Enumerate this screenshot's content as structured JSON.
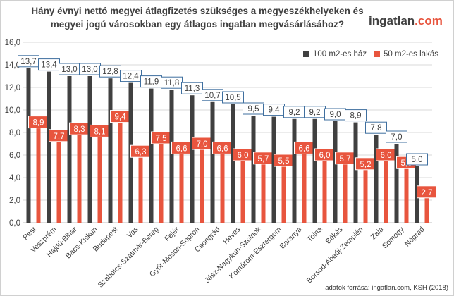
{
  "chart_data": {
    "type": "bar",
    "title": "Hány évnyi nettó megyei  átlagfizetés szükséges a megyeszékhelyeken  és megyei jogú városokban egy átlagos ingatlan megvásárlásához?",
    "categories": [
      "Pest",
      "Veszprém",
      "Hajdú-Bihar",
      "Bács-Kiskun",
      "Budapest",
      "Vas",
      "Szabolcs-Szatmár-Bereg",
      "Fejér",
      "Győr-Moson-Sopron",
      "Csongrád",
      "Heves",
      "Jász-Nagykun-Szolnok",
      "Komárom-Esztergom",
      "Baranya",
      "Tolna",
      "Békés",
      "Borsod-Abaúj-Zemplén",
      "Zala",
      "Somogy",
      "Nógrád"
    ],
    "series": [
      {
        "name": "100 m2-es ház",
        "color": "#404040",
        "values": [
          13.7,
          13.4,
          13.0,
          13.0,
          12.8,
          12.4,
          11.9,
          11.8,
          11.3,
          10.7,
          10.5,
          9.5,
          9.4,
          9.2,
          9.2,
          9.0,
          8.9,
          7.8,
          7.0,
          5.0
        ]
      },
      {
        "name": "50 m2-es lakás",
        "color": "#e8553e",
        "values": [
          8.9,
          7.7,
          8.3,
          8.1,
          9.4,
          6.3,
          7.5,
          6.6,
          7.0,
          6.6,
          6.0,
          5.7,
          5.5,
          6.6,
          6.0,
          5.7,
          5.2,
          6.0,
          5.3,
          2.7
        ]
      }
    ],
    "value_labels_1": [
      "13,7",
      "13,4",
      "13,0",
      "13,0",
      "12,8",
      "12,4",
      "11,9",
      "11,8",
      "11,3",
      "10,7",
      "10,5",
      "9,5",
      "9,4",
      "9,2",
      "9,2",
      "9,0",
      "8,9",
      "7,8",
      "7,0",
      "5,0"
    ],
    "value_labels_2": [
      "8,9",
      "7,7",
      "8,3",
      "8,1",
      "9,4",
      "6,3",
      "7,5",
      "6,6",
      "7,0",
      "6,6",
      "6,0",
      "5,7",
      "5,5",
      "6,6",
      "6,0",
      "5,7",
      "5,2",
      "6,0",
      "5,3",
      "2,7"
    ],
    "yticks": [
      "0,0",
      "2,0",
      "4,0",
      "6,0",
      "8,0",
      "10,0",
      "12,0",
      "14,0",
      "16,0"
    ],
    "ylim": [
      0,
      16
    ],
    "grid": true,
    "legend": "top-right"
  },
  "brand": {
    "name": "ingatlan",
    "suffix": ".com"
  },
  "source": "adatok forrása: ingatlan.com, KSH (2018)"
}
